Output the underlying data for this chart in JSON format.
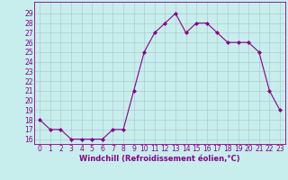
{
  "x": [
    0,
    1,
    2,
    3,
    4,
    5,
    6,
    7,
    8,
    9,
    10,
    11,
    12,
    13,
    14,
    15,
    16,
    17,
    18,
    19,
    20,
    21,
    22,
    23
  ],
  "y": [
    18,
    17,
    17,
    16,
    16,
    16,
    16,
    17,
    17,
    21,
    25,
    27,
    28,
    29,
    27,
    28,
    28,
    27,
    26,
    26,
    26,
    25,
    21,
    19
  ],
  "line_color": "#880088",
  "marker": "D",
  "marker_size": 2.0,
  "bg_color": "#c8eded",
  "grid_color": "#aacccc",
  "xlabel": "Windchill (Refroidissement éolien,°C)",
  "xlabel_fontsize": 6.0,
  "tick_fontsize": 5.5,
  "ylim": [
    15.5,
    30.2
  ],
  "xlim": [
    -0.5,
    23.5
  ],
  "xtick_labels": [
    "0",
    "1",
    "2",
    "3",
    "4",
    "5",
    "6",
    "7",
    "8",
    "9",
    "10",
    "11",
    "12",
    "13",
    "14",
    "15",
    "16",
    "17",
    "18",
    "19",
    "20",
    "21",
    "22",
    "23"
  ]
}
